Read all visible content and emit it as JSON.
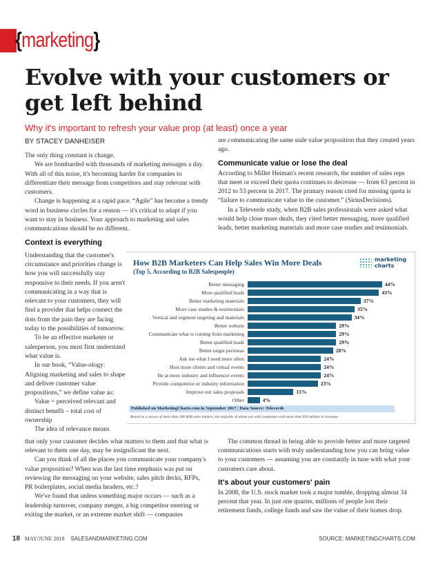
{
  "header": {
    "section_open": "{",
    "section": "marketing",
    "section_close": "}",
    "title": "Evolve with your customers or get left behind",
    "dek": "Why it's important to refresh your value prop (at least) once a year",
    "byline": "BY STACEY DANHEISER"
  },
  "left_top": {
    "paragraphs": [
      "The only thing constant is change.",
      "We are bombarded with thousands of marketing messages a day. With all of this noise, it's becoming harder for companies to differentiate their message from competitors and stay relevant with customers.",
      "Change is happening at a rapid pace. “Agile” has become a trendy word in business circles for a reason — it's critical to adapt if you want to stay in business. Your approach to marketing and sales communications should be no different."
    ],
    "heading": "Context is everything"
  },
  "left_narrow": {
    "paragraphs": [
      "Understanding that the customer's circumstance and priorities change is how you will successfully stay responsive to their needs. If you aren't communicating in a way that is relevant to your customers, they will find a provider that helps connect the dots from the pain they are facing today to the possibilities of tomorrow.",
      "To be an effective marketer or salesperson, you must first understand what value is.",
      "In our book, “Value-ology: Aligning marketing and sales to shape and deliver customer value propositions,” we define value as:",
      "Value = perceived relevant and distinct benefit – total cost of ownership",
      "The idea of relevance means"
    ]
  },
  "left_bottom": {
    "paragraphs": [
      "that only your customer decides what matters to them and that what is relevant to them one day, may be insignificant the next.",
      "Can you think of all the places you communicate your company's value proposition? When was the last time emphasis was put on reviewing the messaging on your website, sales pitch decks, RFPs, PR boilerplates, social media headers, etc.?",
      "We've found that unless something major occurs — such as a leadership turnover, company merger, a big competitor entering or exiting the market, or an extreme market shift — companies"
    ]
  },
  "right_top": {
    "intro": "are communicating the same stale value proposition that they created years ago.",
    "heading": "Communicate value or lose the deal",
    "paragraphs": [
      "According to Miller Heiman's recent research, the number of sales reps that meet or exceed their quota continues to decrease — from 63 percent in 2012 to 53 percent in 2017. The primary reason cited for missing quota is “failure to communicate value to the customer.” (SiriusDecisions).",
      "In a Televerde study, when B2B sales professionals were asked what would help close more deals, they cited better messaging, more qualified leads, better marketing materials and more case studies and testimonials."
    ]
  },
  "right_bottom": {
    "intro": "The common thread in being able to provide better and more targeted communications starts with truly understanding how you can bring value to your customers — assuming you are constantly in tune with what your customers care about.",
    "heading": "It's about your customers' pain",
    "paragraphs": [
      "In 2008, the U.S. stock market took a major tumble, dropping almost 34 percent that year. In just one quarter, millions of people lost their retirement funds, college funds and saw the value of their homes drop."
    ]
  },
  "chart_data": {
    "type": "bar",
    "orientation": "horizontal",
    "title": "How B2B Marketers Can Help Sales Win More Deals",
    "subtitle": "(Top 5, According to B2B Salespeople)",
    "logo": "marketing charts",
    "categories": [
      "Better messaging",
      "More qualified leads",
      "Better marketing materials",
      "More case studies & testimonials",
      "Vertical and segment targeting and materials",
      "Better website",
      "Communicate what is coming from marketing",
      "Better qualified leads",
      "Better target personas",
      "Ask me what I need more often",
      "Host more clients and virtual events",
      "Be at more industry and influencer events",
      "Provide competitive or industry information",
      "Improve our sales proposals",
      "Other"
    ],
    "values": [
      44,
      43,
      37,
      35,
      34,
      29,
      29,
      29,
      28,
      24,
      24,
      24,
      23,
      15,
      4
    ],
    "value_suffix": "%",
    "bar_color": "#1a5f82",
    "published": "Published on MarketingCharts.com in September 2017 | Data Source: Televerde",
    "note": "Based on a survey of more than 300 B2B sales leaders, the majority of whom are with companies with more than $50 million in revenues"
  },
  "footer": {
    "page": "18",
    "issue": "MAY/JUNE 2018",
    "site": "SALESANDMARKETING.COM",
    "source": "SOURCE: MARKETINGCHARTS.COM"
  }
}
